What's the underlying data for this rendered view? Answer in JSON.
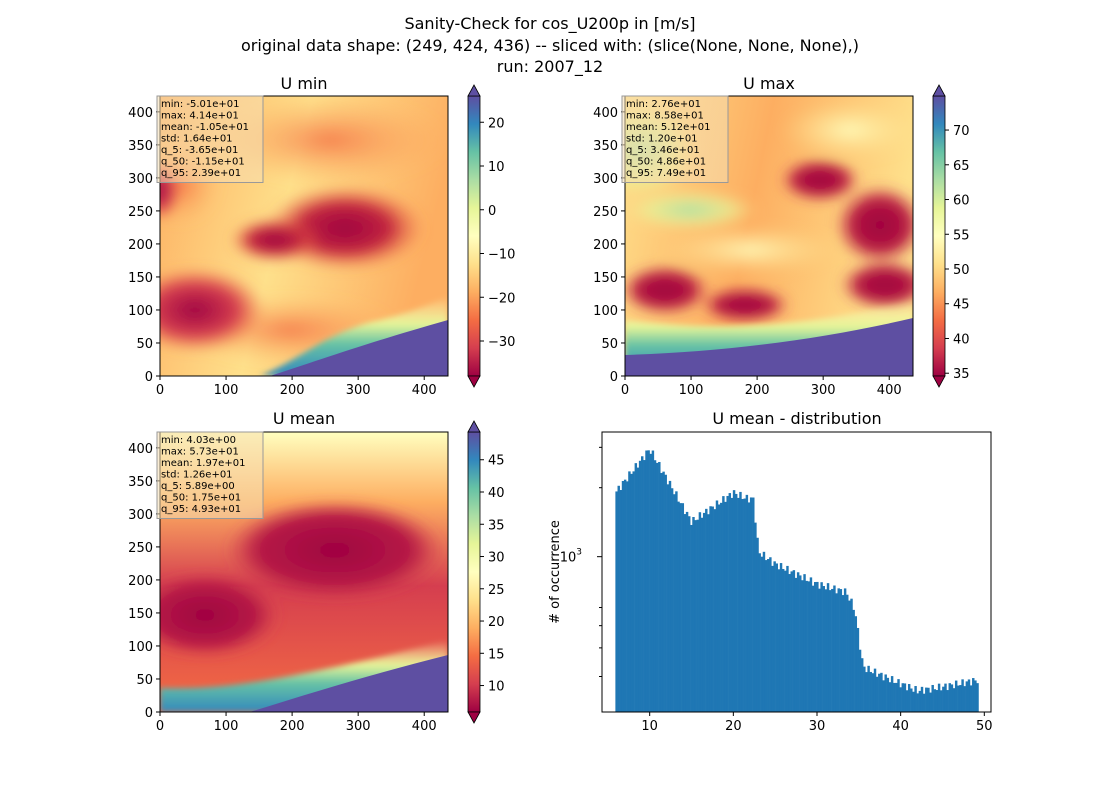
{
  "figure": {
    "suptitle_line1": "Sanity-Check for cos_U200p in [m/s]",
    "suptitle_line2": "original data shape: (249, 424, 436) -- sliced with: (slice(None, None, None),)",
    "suptitle_line3": "run: 2007_12"
  },
  "colors": {
    "spectral": [
      "#9e0142",
      "#d53e4f",
      "#f46d43",
      "#fdae61",
      "#fee08b",
      "#ffffbf",
      "#e6f598",
      "#abdda4",
      "#66c2a5",
      "#3288bd",
      "#5e4fa2"
    ],
    "hist_bar": "#1f77b4"
  },
  "chart_data": [
    {
      "type": "heatmap",
      "title": "U min",
      "xlim": [
        0,
        436
      ],
      "ylim": [
        0,
        424
      ],
      "xticks": [
        "0",
        "100",
        "200",
        "300",
        "400"
      ],
      "yticks": [
        "0",
        "50",
        "100",
        "150",
        "200",
        "250",
        "300",
        "350",
        "400"
      ],
      "colorbar": {
        "vmin": -38,
        "vmax": 26,
        "ticks": [
          "−30",
          "−20",
          "−10",
          "0",
          "10",
          "20"
        ]
      },
      "stats": [
        "min: -5.01e+01",
        "max: 4.14e+01",
        "mean: -1.05e+01",
        "std: 1.64e+01",
        "q_5: -3.65e+01",
        "q_50: -1.15e+01",
        "q_95: 2.39e+01"
      ]
    },
    {
      "type": "heatmap",
      "title": "U max",
      "xlim": [
        0,
        436
      ],
      "ylim": [
        0,
        424
      ],
      "xticks": [
        "0",
        "100",
        "200",
        "300",
        "400"
      ],
      "yticks": [
        "0",
        "50",
        "100",
        "150",
        "200",
        "250",
        "300",
        "350",
        "400"
      ],
      "colorbar": {
        "vmin": 34.6,
        "vmax": 74.9,
        "ticks": [
          "35",
          "40",
          "45",
          "50",
          "55",
          "60",
          "65",
          "70"
        ]
      },
      "stats": [
        "min: 2.76e+01",
        "max: 8.58e+01",
        "mean: 5.12e+01",
        "std: 1.20e+01",
        "q_5: 3.46e+01",
        "q_50: 4.86e+01",
        "q_95: 7.49e+01"
      ]
    },
    {
      "type": "heatmap",
      "title": "U mean",
      "xlim": [
        0,
        436
      ],
      "ylim": [
        0,
        424
      ],
      "xticks": [
        "0",
        "100",
        "200",
        "300",
        "400"
      ],
      "yticks": [
        "0",
        "50",
        "100",
        "150",
        "200",
        "250",
        "300",
        "350",
        "400"
      ],
      "colorbar": {
        "vmin": 5.9,
        "vmax": 49.3,
        "ticks": [
          "10",
          "15",
          "20",
          "25",
          "30",
          "35",
          "40",
          "45"
        ]
      },
      "stats": [
        "min: 4.03e+00",
        "max: 5.73e+01",
        "mean: 1.97e+01",
        "std: 1.26e+01",
        "q_5: 5.89e+00",
        "q_50: 1.75e+01",
        "q_95: 4.93e+01"
      ]
    },
    {
      "type": "bar",
      "title": "U mean - distribution",
      "ylabel": "# of occurrence",
      "yscale": "log",
      "xlim": [
        4.3,
        50.8
      ],
      "ylim": [
        210,
        3500
      ],
      "xticks": [
        "10",
        "20",
        "30",
        "40",
        "50"
      ],
      "ytick_major": "10",
      "ytick_major_exp": "3",
      "x": [
        5.9,
        10,
        15,
        20,
        21.5,
        22.4,
        23,
        25,
        30,
        33.5,
        34.5,
        35.5,
        38,
        42,
        45,
        49.3
      ],
      "values": [
        1900,
        2950,
        1420,
        1900,
        1800,
        1780,
        1050,
        930,
        760,
        700,
        590,
        330,
        300,
        260,
        270,
        290
      ]
    }
  ]
}
